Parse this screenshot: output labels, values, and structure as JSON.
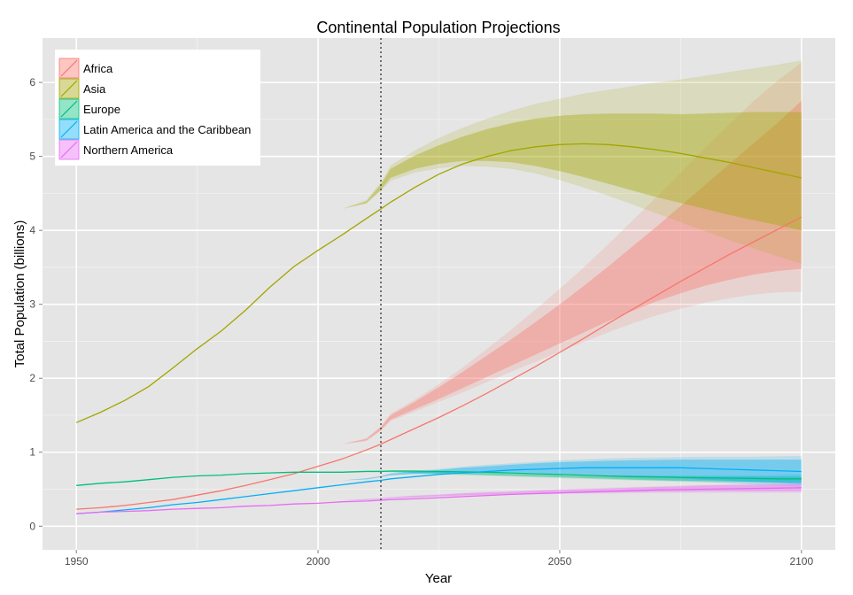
{
  "chart_data": {
    "type": "line",
    "title": "Continental Population Projections",
    "xlabel": "Year",
    "ylabel": "Total Population (billions)",
    "xlim": [
      1943,
      2107
    ],
    "ylim": [
      -0.32,
      6.6
    ],
    "xticks": [
      1950,
      2000,
      2050,
      2100
    ],
    "yticks": [
      0,
      1,
      2,
      3,
      4,
      5,
      6
    ],
    "grid": true,
    "legend_position": "top-left",
    "reference_line_x": 2013,
    "series": [
      {
        "name": "Africa",
        "color": "#F8766D",
        "x": [
          1950,
          1955,
          1960,
          1965,
          1970,
          1975,
          1980,
          1985,
          1990,
          1995,
          2000,
          2005,
          2010,
          2013,
          2015,
          2020,
          2025,
          2030,
          2035,
          2040,
          2045,
          2050,
          2055,
          2060,
          2065,
          2070,
          2075,
          2080,
          2085,
          2090,
          2095,
          2100
        ],
        "y": [
          0.23,
          0.25,
          0.28,
          0.32,
          0.36,
          0.42,
          0.48,
          0.55,
          0.63,
          0.71,
          0.81,
          0.91,
          1.03,
          1.11,
          1.17,
          1.32,
          1.47,
          1.63,
          1.8,
          1.98,
          2.16,
          2.35,
          2.54,
          2.74,
          2.93,
          3.12,
          3.31,
          3.49,
          3.67,
          3.84,
          4.01,
          4.18
        ],
        "band_inner_low": [
          1.03,
          1.11,
          1.16,
          1.3,
          1.44,
          1.58,
          1.72,
          1.87,
          2.02,
          2.17,
          2.32,
          2.47,
          2.62,
          2.77,
          2.91,
          3.04,
          3.15,
          3.25,
          3.33,
          3.4,
          3.45,
          3.48
        ],
        "band_inner_high": [
          1.03,
          1.11,
          1.18,
          1.34,
          1.5,
          1.68,
          1.88,
          2.09,
          2.31,
          2.53,
          2.76,
          3.0,
          3.25,
          3.51,
          3.78,
          4.05,
          4.33,
          4.61,
          4.89,
          5.17,
          5.45,
          5.75
        ],
        "band_outer_low": [
          1.03,
          1.11,
          1.15,
          1.29,
          1.42,
          1.55,
          1.68,
          1.81,
          1.95,
          2.09,
          2.22,
          2.36,
          2.49,
          2.62,
          2.74,
          2.85,
          2.94,
          3.02,
          3.08,
          3.13,
          3.16,
          3.17
        ],
        "band_outer_high": [
          1.03,
          1.11,
          1.19,
          1.35,
          1.52,
          1.71,
          1.92,
          2.15,
          2.4,
          2.66,
          2.93,
          3.21,
          3.5,
          3.81,
          4.13,
          4.45,
          4.78,
          5.11,
          5.43,
          5.74,
          6.02,
          6.27
        ]
      },
      {
        "name": "Asia",
        "color": "#A3A500",
        "x": [
          1950,
          1955,
          1960,
          1965,
          1970,
          1975,
          1980,
          1985,
          1990,
          1995,
          2000,
          2005,
          2010,
          2013,
          2015,
          2020,
          2025,
          2030,
          2035,
          2040,
          2045,
          2050,
          2055,
          2060,
          2065,
          2070,
          2075,
          2080,
          2085,
          2090,
          2095,
          2100
        ],
        "y": [
          1.4,
          1.54,
          1.7,
          1.89,
          2.14,
          2.4,
          2.64,
          2.92,
          3.23,
          3.51,
          3.73,
          3.94,
          4.16,
          4.29,
          4.38,
          4.58,
          4.76,
          4.9,
          5.0,
          5.08,
          5.13,
          5.16,
          5.17,
          5.16,
          5.13,
          5.09,
          5.04,
          4.98,
          4.92,
          4.85,
          4.78,
          4.71
        ],
        "band_inner_low": [
          4.16,
          4.29,
          4.37,
          4.55,
          4.71,
          4.83,
          4.9,
          4.94,
          4.94,
          4.92,
          4.87,
          4.8,
          4.72,
          4.63,
          4.54,
          4.45,
          4.37,
          4.29,
          4.21,
          4.14,
          4.07,
          4.0
        ],
        "band_inner_high": [
          4.16,
          4.29,
          4.39,
          4.62,
          4.83,
          5.01,
          5.15,
          5.27,
          5.37,
          5.45,
          5.51,
          5.55,
          5.57,
          5.58,
          5.58,
          5.58,
          5.57,
          5.58,
          5.59,
          5.6,
          5.6,
          5.6
        ],
        "band_outer_low": [
          4.16,
          4.29,
          4.36,
          4.53,
          4.67,
          4.78,
          4.84,
          4.87,
          4.86,
          4.83,
          4.77,
          4.68,
          4.58,
          4.47,
          4.35,
          4.23,
          4.11,
          3.99,
          3.87,
          3.76,
          3.65,
          3.55
        ],
        "band_outer_high": [
          4.16,
          4.29,
          4.41,
          4.65,
          4.88,
          5.08,
          5.25,
          5.39,
          5.51,
          5.62,
          5.71,
          5.78,
          5.85,
          5.9,
          5.95,
          6.0,
          6.04,
          6.09,
          6.14,
          6.19,
          6.24,
          6.3
        ]
      },
      {
        "name": "Europe",
        "color": "#00BF7D",
        "x": [
          1950,
          1955,
          1960,
          1965,
          1970,
          1975,
          1980,
          1985,
          1990,
          1995,
          2000,
          2005,
          2010,
          2013,
          2015,
          2020,
          2025,
          2030,
          2035,
          2040,
          2045,
          2050,
          2055,
          2060,
          2065,
          2070,
          2075,
          2080,
          2085,
          2090,
          2095,
          2100
        ],
        "y": [
          0.55,
          0.58,
          0.6,
          0.63,
          0.66,
          0.68,
          0.69,
          0.71,
          0.72,
          0.73,
          0.73,
          0.73,
          0.74,
          0.74,
          0.745,
          0.745,
          0.74,
          0.735,
          0.73,
          0.72,
          0.71,
          0.7,
          0.69,
          0.68,
          0.67,
          0.665,
          0.66,
          0.655,
          0.65,
          0.645,
          0.64,
          0.64
        ],
        "band_inner_low": [
          0.74,
          0.74,
          0.74,
          0.74,
          0.735,
          0.72,
          0.71,
          0.7,
          0.69,
          0.68,
          0.67,
          0.66,
          0.65,
          0.64,
          0.63,
          0.62,
          0.615,
          0.61,
          0.605,
          0.6,
          0.595,
          0.59
        ],
        "band_inner_high": [
          0.74,
          0.74,
          0.75,
          0.75,
          0.75,
          0.75,
          0.74,
          0.73,
          0.72,
          0.71,
          0.7,
          0.69,
          0.68,
          0.675,
          0.67,
          0.67,
          0.67,
          0.67,
          0.67,
          0.67,
          0.67,
          0.67
        ],
        "band_outer_low": [
          0.74,
          0.74,
          0.74,
          0.735,
          0.73,
          0.715,
          0.7,
          0.69,
          0.68,
          0.67,
          0.66,
          0.65,
          0.64,
          0.63,
          0.62,
          0.61,
          0.6,
          0.595,
          0.59,
          0.585,
          0.58,
          0.575
        ],
        "band_outer_high": [
          0.74,
          0.74,
          0.75,
          0.755,
          0.755,
          0.755,
          0.75,
          0.74,
          0.73,
          0.72,
          0.71,
          0.7,
          0.695,
          0.69,
          0.69,
          0.69,
          0.69,
          0.69,
          0.69,
          0.69,
          0.69,
          0.7
        ]
      },
      {
        "name": "Latin America and the Caribbean",
        "color": "#00B0F6",
        "x": [
          1950,
          1955,
          1960,
          1965,
          1970,
          1975,
          1980,
          1985,
          1990,
          1995,
          2000,
          2005,
          2010,
          2013,
          2015,
          2020,
          2025,
          2030,
          2035,
          2040,
          2045,
          2050,
          2055,
          2060,
          2065,
          2070,
          2075,
          2080,
          2085,
          2090,
          2095,
          2100
        ],
        "y": [
          0.17,
          0.19,
          0.22,
          0.25,
          0.29,
          0.32,
          0.36,
          0.4,
          0.44,
          0.48,
          0.52,
          0.56,
          0.6,
          0.62,
          0.64,
          0.67,
          0.7,
          0.72,
          0.74,
          0.76,
          0.77,
          0.78,
          0.79,
          0.79,
          0.79,
          0.79,
          0.79,
          0.78,
          0.77,
          0.76,
          0.75,
          0.74
        ],
        "band_inner_low": [
          0.6,
          0.62,
          0.635,
          0.665,
          0.69,
          0.71,
          0.72,
          0.73,
          0.73,
          0.73,
          0.72,
          0.71,
          0.7,
          0.69,
          0.675,
          0.66,
          0.645,
          0.63,
          0.615,
          0.6,
          0.585,
          0.57
        ],
        "band_inner_high": [
          0.6,
          0.62,
          0.645,
          0.675,
          0.71,
          0.735,
          0.76,
          0.79,
          0.81,
          0.83,
          0.85,
          0.865,
          0.875,
          0.885,
          0.89,
          0.895,
          0.9,
          0.9,
          0.9,
          0.9,
          0.9,
          0.9
        ],
        "band_outer_low": [
          0.6,
          0.62,
          0.63,
          0.66,
          0.685,
          0.7,
          0.71,
          0.715,
          0.715,
          0.71,
          0.7,
          0.69,
          0.675,
          0.66,
          0.645,
          0.63,
          0.61,
          0.595,
          0.58,
          0.565,
          0.55,
          0.535
        ],
        "band_outer_high": [
          0.6,
          0.62,
          0.65,
          0.68,
          0.715,
          0.745,
          0.775,
          0.805,
          0.83,
          0.85,
          0.87,
          0.89,
          0.905,
          0.915,
          0.925,
          0.93,
          0.935,
          0.94,
          0.94,
          0.94,
          0.945,
          0.95
        ]
      },
      {
        "name": "Northern America",
        "color": "#E76BF3",
        "x": [
          1950,
          1955,
          1960,
          1965,
          1970,
          1975,
          1980,
          1985,
          1990,
          1995,
          2000,
          2005,
          2010,
          2013,
          2015,
          2020,
          2025,
          2030,
          2035,
          2040,
          2045,
          2050,
          2055,
          2060,
          2065,
          2070,
          2075,
          2080,
          2085,
          2090,
          2095,
          2100
        ],
        "y": [
          0.17,
          0.19,
          0.2,
          0.21,
          0.23,
          0.24,
          0.25,
          0.27,
          0.28,
          0.3,
          0.31,
          0.33,
          0.34,
          0.35,
          0.36,
          0.37,
          0.385,
          0.4,
          0.415,
          0.43,
          0.44,
          0.45,
          0.46,
          0.47,
          0.48,
          0.49,
          0.495,
          0.5,
          0.505,
          0.51,
          0.515,
          0.52
        ],
        "band_inner_low": [
          0.34,
          0.35,
          0.355,
          0.365,
          0.38,
          0.39,
          0.405,
          0.415,
          0.425,
          0.435,
          0.44,
          0.445,
          0.45,
          0.455,
          0.46,
          0.465,
          0.465,
          0.47,
          0.47,
          0.47,
          0.47,
          0.47
        ],
        "band_inner_high": [
          0.34,
          0.35,
          0.365,
          0.375,
          0.39,
          0.41,
          0.425,
          0.445,
          0.455,
          0.465,
          0.48,
          0.49,
          0.5,
          0.51,
          0.52,
          0.53,
          0.54,
          0.55,
          0.555,
          0.56,
          0.565,
          0.57
        ],
        "band_outer_low": [
          0.34,
          0.35,
          0.35,
          0.36,
          0.375,
          0.385,
          0.4,
          0.41,
          0.42,
          0.425,
          0.43,
          0.435,
          0.44,
          0.44,
          0.445,
          0.45,
          0.45,
          0.45,
          0.45,
          0.45,
          0.45,
          0.45
        ],
        "band_outer_high": [
          0.34,
          0.35,
          0.37,
          0.38,
          0.395,
          0.415,
          0.43,
          0.45,
          0.465,
          0.475,
          0.49,
          0.5,
          0.51,
          0.52,
          0.53,
          0.54,
          0.55,
          0.56,
          0.57,
          0.575,
          0.58,
          0.59
        ]
      }
    ]
  }
}
